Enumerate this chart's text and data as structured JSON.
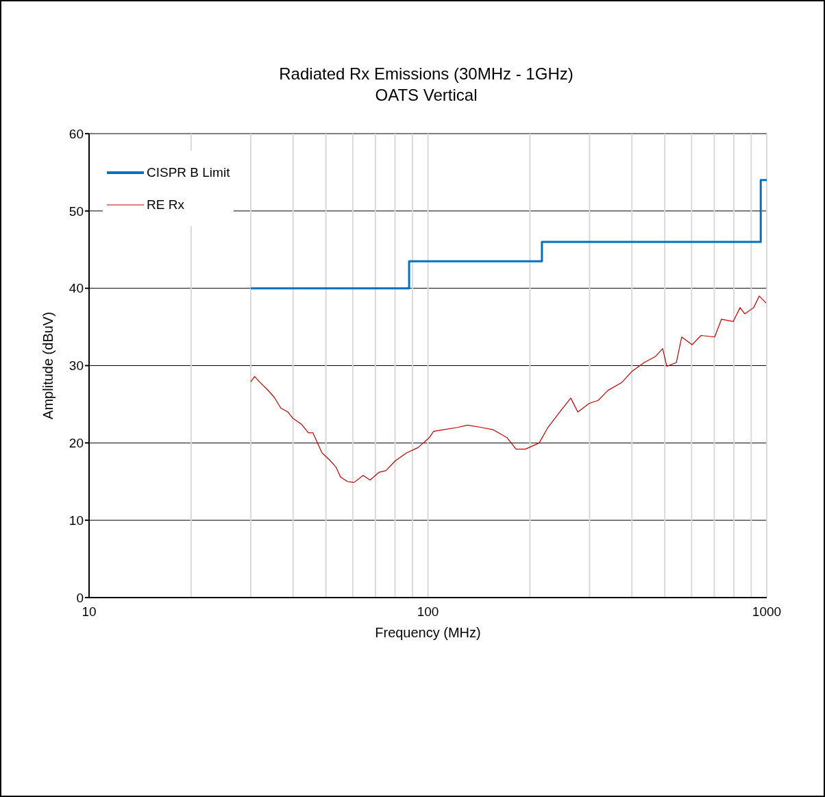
{
  "chart_data": {
    "type": "line",
    "title": "Radiated Rx Emissions (30MHz - 1GHz)",
    "subtitle": "OATS Vertical",
    "xlabel": "Frequency (MHz)",
    "ylabel": "Amplitude (dBuV)",
    "log": "x",
    "xlim": [
      10,
      1000
    ],
    "xticks": [
      10,
      {
        "value": 20,
        "label": null
      },
      {
        "value": 30,
        "label": null
      },
      {
        "value": 40,
        "label": null
      },
      {
        "value": 50,
        "label": null
      },
      {
        "value": 60,
        "label": null
      },
      {
        "value": 70,
        "label": null
      },
      {
        "value": 80,
        "label": null
      },
      {
        "value": 90,
        "label": null
      },
      100,
      {
        "value": 200,
        "label": null
      },
      {
        "value": 300,
        "label": null
      },
      {
        "value": 400,
        "label": null
      },
      {
        "value": 500,
        "label": null
      },
      {
        "value": 600,
        "label": null
      },
      {
        "value": 700,
        "label": null
      },
      {
        "value": 800,
        "label": null
      },
      {
        "value": 900,
        "label": null
      },
      1000
    ],
    "ylim": [
      0,
      60
    ],
    "yticks": [
      0,
      10,
      20,
      30,
      40,
      50,
      60
    ],
    "grid": true,
    "legend": "top left",
    "series": [
      {
        "name": "CISPR B Limit",
        "type": "step",
        "color": "#0070c0",
        "x": [
          30,
          88,
          217,
          960,
          1000
        ],
        "values": [
          40,
          43.5,
          46,
          54,
          54
        ]
      },
      {
        "name": "RE Rx",
        "type": "line",
        "color": "#c00000",
        "x": [
          30.0,
          30.8,
          32.0,
          33.6,
          35.2,
          36.8,
          38.6,
          39.9,
          42.4,
          44.4,
          45.8,
          47.2,
          48.7,
          51.0,
          53.5,
          55.2,
          57.9,
          60.6,
          64.4,
          67.5,
          71.7,
          75.1,
          80.2,
          86.4,
          93.5,
          101,
          104,
          111,
          122,
          131,
          144,
          156,
          171,
          182,
          194,
          213,
          226,
          245,
          264,
          277,
          299,
          318,
          340,
          373,
          401,
          435,
          470,
          493,
          507,
          541,
          561,
          602,
          640,
          702,
          735,
          796,
          834,
          861,
          915,
          950,
          995
        ],
        "values": [
          27.9,
          28.6,
          27.8,
          26.9,
          25.9,
          24.5,
          24.0,
          23.2,
          22.4,
          21.3,
          21.3,
          20.0,
          18.7,
          17.9,
          16.9,
          15.6,
          15.0,
          14.9,
          15.8,
          15.2,
          16.2,
          16.4,
          17.7,
          18.7,
          19.4,
          20.7,
          21.5,
          21.7,
          22.0,
          22.3,
          22.0,
          21.7,
          20.7,
          19.2,
          19.2,
          20.0,
          22.0,
          24.0,
          25.8,
          24.0,
          25.1,
          25.5,
          26.8,
          27.8,
          29.3,
          30.4,
          31.2,
          32.2,
          29.9,
          30.4,
          33.7,
          32.7,
          33.9,
          33.7,
          36.0,
          35.7,
          37.5,
          36.7,
          37.5,
          39.0,
          38.1
        ]
      }
    ]
  }
}
